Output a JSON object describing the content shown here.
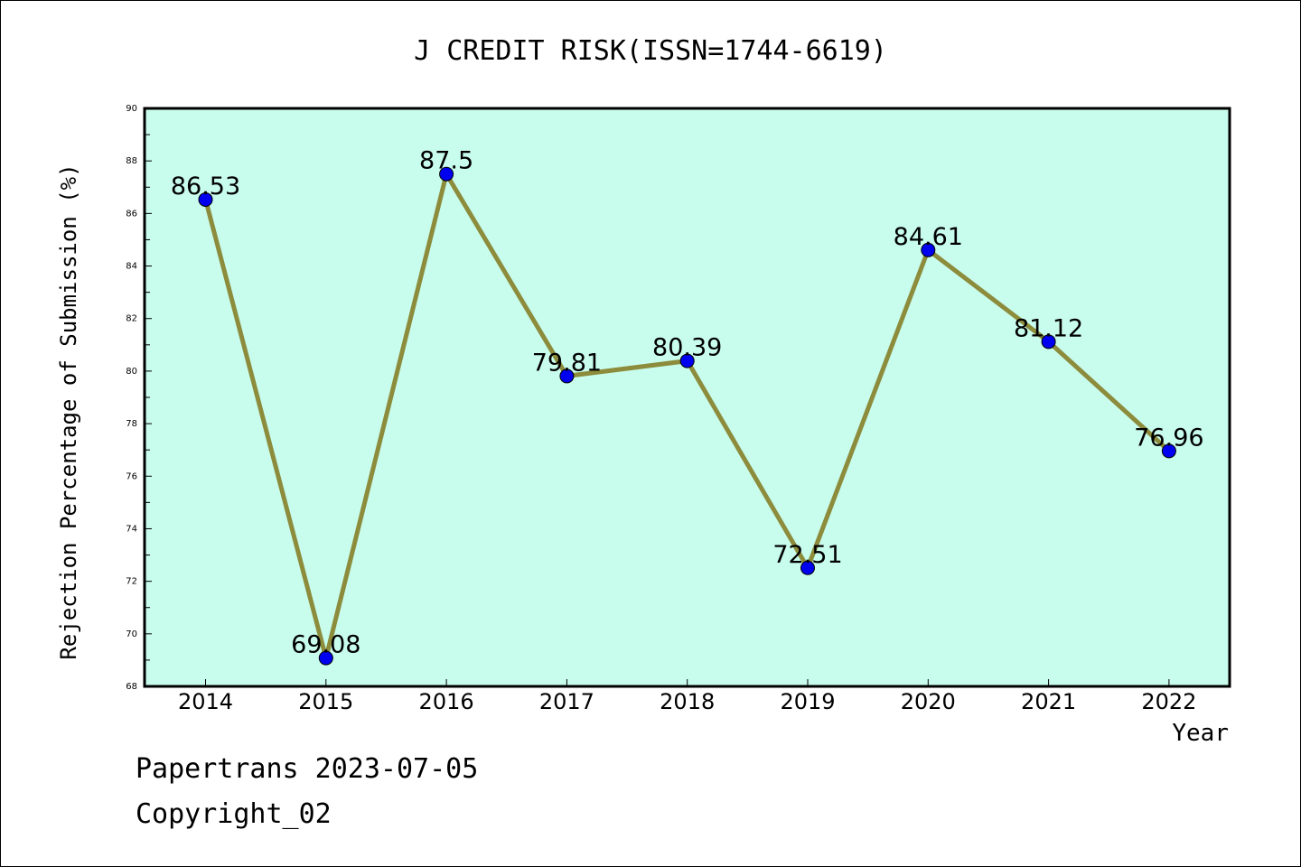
{
  "chart_data": {
    "type": "line",
    "title": "J CREDIT RISK(ISSN=1744-6619)",
    "xlabel": "Year",
    "ylabel": "Rejection Percentage of Submission (%)",
    "categories": [
      "2014",
      "2015",
      "2016",
      "2017",
      "2018",
      "2019",
      "2020",
      "2021",
      "2022"
    ],
    "values": [
      86.53,
      69.08,
      87.5,
      79.81,
      80.39,
      72.51,
      84.61,
      81.12,
      76.96
    ],
    "data_labels": [
      "86.53",
      "69.08",
      "87.5",
      "79.81",
      "80.39",
      "72.51",
      "84.61",
      "81.12",
      "76.96"
    ],
    "ylim": [
      68,
      90
    ],
    "yticks": [
      68,
      70,
      72,
      74,
      76,
      78,
      80,
      82,
      84,
      86,
      88,
      90
    ],
    "grid": false,
    "legend": "none",
    "colors": {
      "plot_background": "#c8fcec",
      "line": "#8c8c3c",
      "marker": "#0000f0"
    }
  },
  "footer": {
    "source": "Papertrans 2023-07-05",
    "copyright": "Copyright_02"
  }
}
